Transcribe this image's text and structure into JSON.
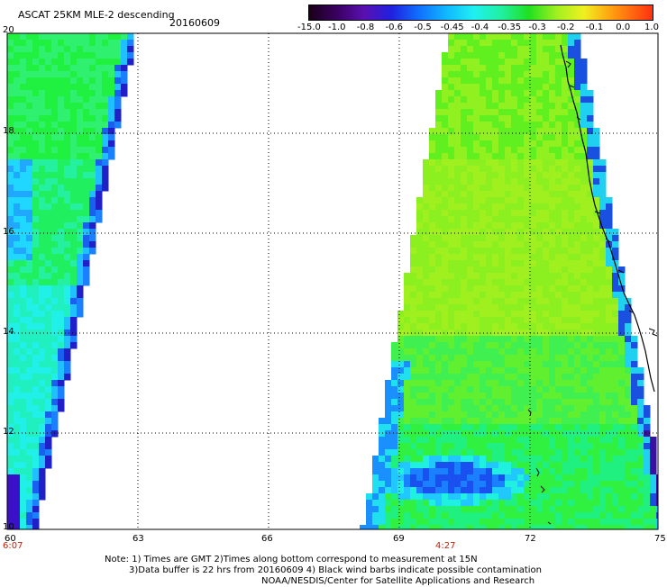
{
  "header": {
    "title": "ASCAT 25KM MLE-2 descending",
    "date": "20160609"
  },
  "colorbar": {
    "labels": [
      "-15.0",
      "-1.0",
      "-0.8",
      "-0.6",
      "-0.5",
      "-0.45",
      "-0.4",
      "-0.35",
      "-0.3",
      "-0.2",
      "-0.1",
      "0.0",
      "1.0"
    ],
    "colors": [
      "#2a0030",
      "#4a0a8a",
      "#3a20c8",
      "#1040f0",
      "#1a80ff",
      "#20c8ff",
      "#20f0e0",
      "#20f090",
      "#20f020",
      "#8af020",
      "#e0f020",
      "#ff9a10",
      "#ff2a10"
    ]
  },
  "map": {
    "lat_labels": [
      "20",
      "18",
      "16",
      "14",
      "12",
      "10"
    ],
    "lon_labels": [
      "60",
      "63",
      "66",
      "69",
      "72",
      "75"
    ],
    "time_labels": [
      "6:07",
      "4:27"
    ],
    "lat_range": [
      10,
      20
    ],
    "lon_range": [
      60,
      75
    ],
    "gridlines": "dotted"
  },
  "footer": {
    "line1": "Note: 1) Times are GMT 2)Times along bottom correspond to measurement at 15N",
    "line2": "3)Data buffer is 22 hrs from 20160609 4) Black wind barbs indicate possible contamination",
    "line3": "NOAA/NESDIS/Center for Satellite Applications and Research"
  }
}
